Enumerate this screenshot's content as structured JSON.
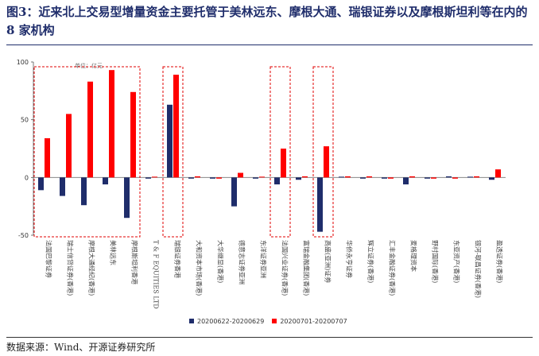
{
  "title": "图3：近来北上交易型增量资金主要托管于美林远东、摩根大通、瑞银证券以及摩根斯坦利等在内的 8 家机构",
  "source": "数据来源：Wind、开源证券研究所",
  "colors": {
    "series1": "#1f2d6b",
    "series2": "#ff0000",
    "highlight": "#e00000"
  },
  "chart_data": {
    "type": "bar",
    "unit_label": "单位：亿元",
    "ylim": [
      -50,
      100
    ],
    "yticks": [
      -50,
      0,
      50,
      100
    ],
    "categories": [
      "法国巴黎证券",
      "瑞士信贷证券(香港)",
      "摩根大通经纪(香港)",
      "美林远东",
      "摩根斯坦利香港",
      "T & F EQUITIES LTD",
      "瑞银证券香港",
      "大和资本市场(香港)",
      "大华继显(香港)",
      "德意志证券亚洲",
      "东洋证券亚洲",
      "法国兴业证券(香港)",
      "富瑞金融集团(香港)",
      "高盛(亚洲)证券",
      "华侨永亨证券",
      "辉立证券(香港)",
      "汇丰金融证券(香港)",
      "麦格理资本",
      "野村国际(香港)",
      "东亚资产(香港)",
      "银河-联昌证券(香港)",
      "盈透证券(香港)"
    ],
    "series": [
      {
        "name": "20200622-20200629",
        "values": [
          -11,
          -16,
          -24,
          -6,
          -35,
          -1,
          63,
          -1,
          -1,
          -25,
          -1,
          -6,
          -2,
          -47,
          0,
          -1,
          -1,
          -6,
          -1,
          1,
          0,
          -2
        ]
      },
      {
        "name": "20200701-20200707",
        "values": [
          34,
          55,
          83,
          93,
          74,
          0,
          89,
          1,
          -1,
          4,
          0,
          25,
          1,
          27,
          1,
          1,
          -1,
          1,
          -1,
          -1,
          1,
          7
        ]
      }
    ],
    "highlight_groups": [
      {
        "from": 0,
        "to": 4
      },
      {
        "from": 6,
        "to": 6
      },
      {
        "from": 11,
        "to": 11
      },
      {
        "from": 13,
        "to": 13
      }
    ]
  }
}
